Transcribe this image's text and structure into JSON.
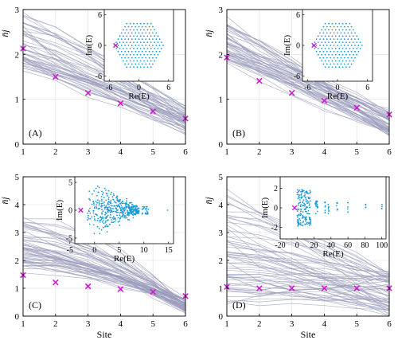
{
  "colors": {
    "lines": "#9a9bbb",
    "markers": "#d21ad2",
    "inset_points": "#1e9ad6",
    "axis": "#000000",
    "grid": "#e6e6e6"
  },
  "chart_data": [
    {
      "type": "line",
      "panel_label": "(A)",
      "ylabel": "n̄j",
      "xlabel": "",
      "xlim": [
        1,
        6
      ],
      "ylim": [
        0,
        3
      ],
      "xticks": [
        "1",
        "2",
        "3",
        "4",
        "5",
        "6"
      ],
      "yticks": [
        "0",
        "1",
        "2",
        "3"
      ],
      "ensemble": {
        "count": 50,
        "start_range": [
          1.7,
          2.9
        ],
        "end_range": [
          0.2,
          0.9
        ],
        "decay_range": [
          0.7,
          1.4
        ],
        "seed": 11
      },
      "markers": {
        "x": [
          1,
          2,
          3,
          4,
          5,
          6
        ],
        "y": [
          2.13,
          1.5,
          1.14,
          0.91,
          0.73,
          0.57
        ]
      },
      "inset": {
        "type": "scatter",
        "xlabel": "Re(E)",
        "ylabel": "Im(E)",
        "xlim": [
          -7,
          7
        ],
        "ylim": [
          -7,
          7
        ],
        "xticks": [
          "-6",
          "0",
          "6"
        ],
        "yticks": [
          "-6",
          "0",
          "6"
        ],
        "pattern": "hexagon",
        "hexagon_radius": 5.3,
        "lattice_spacing": 0.7,
        "marker": {
          "x": -4.7,
          "y": 0
        }
      }
    },
    {
      "type": "line",
      "panel_label": "(B)",
      "ylabel": "n̄j",
      "xlabel": "",
      "xlim": [
        1,
        6
      ],
      "ylim": [
        0,
        3
      ],
      "xticks": [
        "1",
        "2",
        "3",
        "4",
        "5",
        "6"
      ],
      "yticks": [
        "0",
        "1",
        "2",
        "3"
      ],
      "ensemble": {
        "count": 50,
        "start_range": [
          1.8,
          2.8
        ],
        "end_range": [
          0.2,
          0.8
        ],
        "decay_range": [
          0.8,
          1.3
        ],
        "seed": 23
      },
      "markers": {
        "x": [
          1,
          2,
          3,
          4,
          5,
          6
        ],
        "y": [
          1.93,
          1.41,
          1.14,
          0.97,
          0.81,
          0.66
        ]
      },
      "inset": {
        "type": "scatter",
        "xlabel": "Re(E)",
        "ylabel": "Im(E)",
        "xlim": [
          -7,
          7
        ],
        "ylim": [
          -7,
          7
        ],
        "xticks": [
          "-6",
          "0",
          "6"
        ],
        "yticks": [
          "-6",
          "0",
          "6"
        ],
        "pattern": "hexagon",
        "hexagon_radius": 5.3,
        "lattice_spacing": 0.7,
        "marker": {
          "x": -4.7,
          "y": 0
        }
      }
    },
    {
      "type": "line",
      "panel_label": "(C)",
      "ylabel": "n̄j",
      "xlabel": "Site",
      "xlim": [
        1,
        6
      ],
      "ylim": [
        0,
        5
      ],
      "xticks": [
        "1",
        "2",
        "3",
        "4",
        "5",
        "6"
      ],
      "yticks": [
        "0",
        "1",
        "2",
        "3",
        "4",
        "5"
      ],
      "ensemble": {
        "count": 55,
        "start_range": [
          1.6,
          3.6
        ],
        "end_range": [
          0.1,
          0.6
        ],
        "decay_range": [
          1.1,
          1.9
        ],
        "seed": 37
      },
      "markers": {
        "x": [
          1,
          2,
          3,
          4,
          5,
          6
        ],
        "y": [
          1.47,
          1.21,
          1.07,
          0.97,
          0.87,
          0.72
        ]
      },
      "inset": {
        "type": "scatter",
        "xlabel": "Re(E)",
        "ylabel": "Im(E)",
        "xlim": [
          -4,
          16
        ],
        "ylim": [
          -6,
          6
        ],
        "xticks": [
          "-5",
          "0",
          "5",
          "10",
          "15"
        ],
        "yticks": [
          "-5",
          "0",
          "5"
        ],
        "pattern": "cone",
        "marker": {
          "x": -2.8,
          "y": 0
        }
      }
    },
    {
      "type": "line",
      "panel_label": "(D)",
      "ylabel": "n̄j",
      "xlabel": "Site",
      "xlim": [
        1,
        6
      ],
      "ylim": [
        0,
        5
      ],
      "xticks": [
        "1",
        "2",
        "3",
        "4",
        "5",
        "6"
      ],
      "yticks": [
        "0",
        "1",
        "2",
        "3",
        "4",
        "5"
      ],
      "ensemble": {
        "count": 60,
        "start_range": [
          0.4,
          4.5
        ],
        "end_range": [
          0.05,
          1.6
        ],
        "decay_range": [
          0.5,
          1.8
        ],
        "seed": 51
      },
      "markers": {
        "x": [
          1,
          2,
          3,
          4,
          5,
          6
        ],
        "y": [
          1.05,
          1.0,
          1.0,
          1.0,
          1.0,
          1.0
        ]
      },
      "inset": {
        "type": "scatter",
        "xlabel": "Re(E)",
        "ylabel": "Im(E)",
        "xlim": [
          -20,
          105
        ],
        "ylim": [
          -3.2,
          3.2
        ],
        "xticks": [
          "-20",
          "0",
          "20",
          "40",
          "60",
          "80",
          "100"
        ],
        "yticks": [
          "-2",
          "0",
          "2"
        ],
        "pattern": "columns",
        "marker": {
          "x": -3,
          "y": 0
        }
      }
    }
  ]
}
